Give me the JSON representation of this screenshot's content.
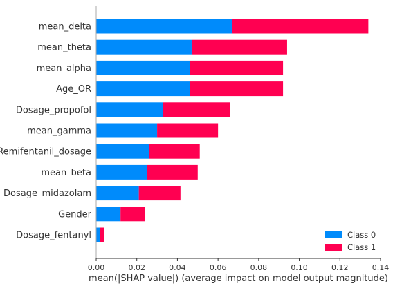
{
  "chart_data": {
    "type": "bar",
    "stacked": true,
    "orientation": "horizontal",
    "categories": [
      "mean_delta",
      "mean_theta",
      "mean_alpha",
      "Age_OR",
      "Dosage_propofol",
      "mean_gamma",
      "Remifentanil_dosage",
      "mean_beta",
      "Dosage_midazolam",
      "Gender",
      "Dosage_fentanyl"
    ],
    "series": [
      {
        "name": "Class 0",
        "color": "#008bfb",
        "values": [
          0.067,
          0.047,
          0.046,
          0.046,
          0.033,
          0.03,
          0.026,
          0.025,
          0.021,
          0.012,
          0.002
        ]
      },
      {
        "name": "Class 1",
        "color": "#ff0051",
        "values": [
          0.067,
          0.047,
          0.046,
          0.046,
          0.033,
          0.03,
          0.025,
          0.025,
          0.0205,
          0.012,
          0.002
        ]
      }
    ],
    "xlabel": "mean(|SHAP value|) (average impact on model output magnitude)",
    "ylabel": "",
    "xlim": [
      0,
      0.14
    ],
    "xticks": [
      "0.00",
      "0.02",
      "0.04",
      "0.06",
      "0.08",
      "0.10",
      "0.12",
      "0.14"
    ],
    "tick_values": [
      0,
      0.02,
      0.04,
      0.06,
      0.08,
      0.1,
      0.12,
      0.14
    ],
    "grid": false,
    "legend_position": "bottom-right"
  }
}
